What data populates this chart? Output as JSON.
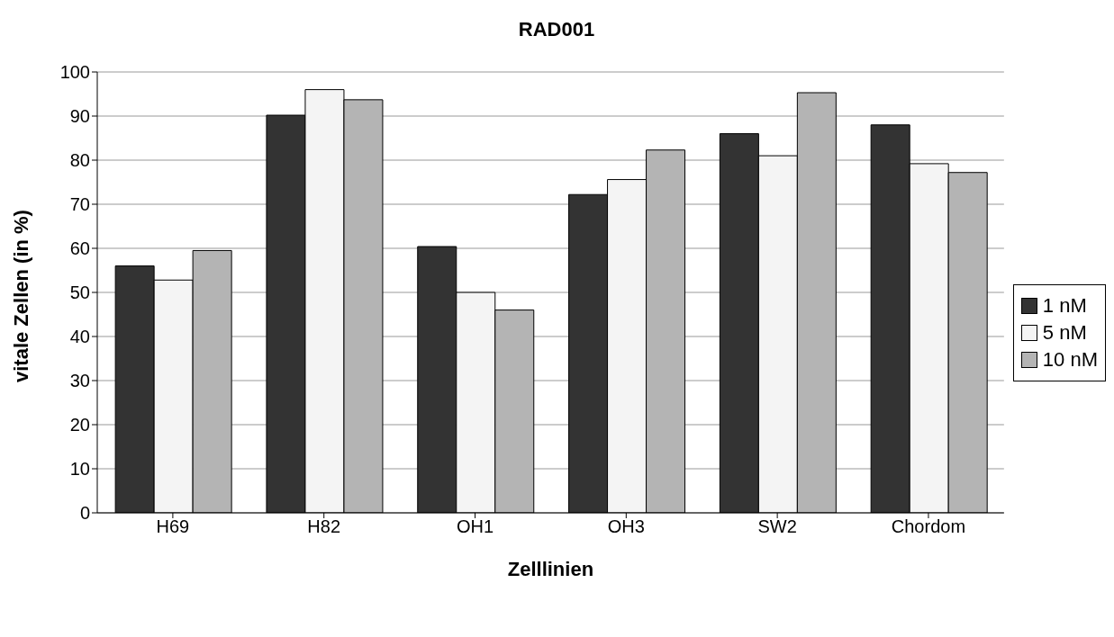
{
  "chart_data": {
    "type": "bar",
    "title": "RAD001",
    "xlabel": "Zelllinien",
    "ylabel": "vitale Zellen (in %)",
    "categories": [
      "H69",
      "H82",
      "OH1",
      "OH3",
      "SW2",
      "Chordom"
    ],
    "series": [
      {
        "name": "1 nM",
        "color": "#333333",
        "values": [
          56,
          90.2,
          60.4,
          72.2,
          86,
          88
        ]
      },
      {
        "name": "5 nM",
        "color": "#f4f4f4",
        "values": [
          52.8,
          96,
          50,
          75.6,
          81,
          79.2
        ]
      },
      {
        "name": "10 nM",
        "color": "#b4b4b4",
        "values": [
          59.5,
          93.7,
          46,
          82.3,
          95.3,
          77.2
        ]
      }
    ],
    "ylim": [
      0,
      100
    ],
    "yticks": [
      0,
      10,
      20,
      30,
      40,
      50,
      60,
      70,
      80,
      90,
      100
    ],
    "grid": "y",
    "legend": "right"
  }
}
